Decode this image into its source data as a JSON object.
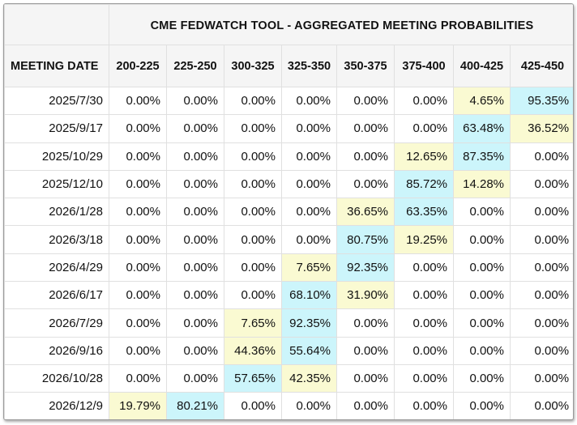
{
  "chart_data": {
    "type": "table",
    "title": "CME FEDWATCH TOOL - AGGREGATED MEETING PROBABILITIES",
    "row_header_label": "MEETING DATE",
    "columns": [
      "200-225",
      "225-250",
      "300-325",
      "325-350",
      "350-375",
      "375-400",
      "400-425",
      "425-450"
    ],
    "rows": [
      {
        "date": "2025/7/30",
        "values": [
          "0.00%",
          "0.00%",
          "0.00%",
          "0.00%",
          "0.00%",
          "0.00%",
          "4.65%",
          "95.35%"
        ],
        "highlights": [
          "",
          "",
          "",
          "",
          "",
          "",
          "y",
          "c"
        ]
      },
      {
        "date": "2025/9/17",
        "values": [
          "0.00%",
          "0.00%",
          "0.00%",
          "0.00%",
          "0.00%",
          "0.00%",
          "63.48%",
          "36.52%"
        ],
        "highlights": [
          "",
          "",
          "",
          "",
          "",
          "",
          "c",
          "y"
        ]
      },
      {
        "date": "2025/10/29",
        "values": [
          "0.00%",
          "0.00%",
          "0.00%",
          "0.00%",
          "0.00%",
          "12.65%",
          "87.35%",
          "0.00%"
        ],
        "highlights": [
          "",
          "",
          "",
          "",
          "",
          "y",
          "c",
          ""
        ]
      },
      {
        "date": "2025/12/10",
        "values": [
          "0.00%",
          "0.00%",
          "0.00%",
          "0.00%",
          "0.00%",
          "85.72%",
          "14.28%",
          "0.00%"
        ],
        "highlights": [
          "",
          "",
          "",
          "",
          "",
          "c",
          "y",
          ""
        ]
      },
      {
        "date": "2026/1/28",
        "values": [
          "0.00%",
          "0.00%",
          "0.00%",
          "0.00%",
          "36.65%",
          "63.35%",
          "0.00%",
          "0.00%"
        ],
        "highlights": [
          "",
          "",
          "",
          "",
          "y",
          "c",
          "",
          ""
        ]
      },
      {
        "date": "2026/3/18",
        "values": [
          "0.00%",
          "0.00%",
          "0.00%",
          "0.00%",
          "80.75%",
          "19.25%",
          "0.00%",
          "0.00%"
        ],
        "highlights": [
          "",
          "",
          "",
          "",
          "c",
          "y",
          "",
          ""
        ]
      },
      {
        "date": "2026/4/29",
        "values": [
          "0.00%",
          "0.00%",
          "0.00%",
          "7.65%",
          "92.35%",
          "0.00%",
          "0.00%",
          "0.00%"
        ],
        "highlights": [
          "",
          "",
          "",
          "y",
          "c",
          "",
          "",
          ""
        ]
      },
      {
        "date": "2026/6/17",
        "values": [
          "0.00%",
          "0.00%",
          "0.00%",
          "68.10%",
          "31.90%",
          "0.00%",
          "0.00%",
          "0.00%"
        ],
        "highlights": [
          "",
          "",
          "",
          "c",
          "y",
          "",
          "",
          ""
        ]
      },
      {
        "date": "2026/7/29",
        "values": [
          "0.00%",
          "0.00%",
          "7.65%",
          "92.35%",
          "0.00%",
          "0.00%",
          "0.00%",
          "0.00%"
        ],
        "highlights": [
          "",
          "",
          "y",
          "c",
          "",
          "",
          "",
          ""
        ]
      },
      {
        "date": "2026/9/16",
        "values": [
          "0.00%",
          "0.00%",
          "44.36%",
          "55.64%",
          "0.00%",
          "0.00%",
          "0.00%",
          "0.00%"
        ],
        "highlights": [
          "",
          "",
          "y",
          "c",
          "",
          "",
          "",
          ""
        ]
      },
      {
        "date": "2026/10/28",
        "values": [
          "0.00%",
          "0.00%",
          "57.65%",
          "42.35%",
          "0.00%",
          "0.00%",
          "0.00%",
          "0.00%"
        ],
        "highlights": [
          "",
          "",
          "c",
          "y",
          "",
          "",
          "",
          ""
        ]
      },
      {
        "date": "2026/12/9",
        "values": [
          "19.79%",
          "80.21%",
          "0.00%",
          "0.00%",
          "0.00%",
          "0.00%",
          "0.00%",
          "0.00%"
        ],
        "highlights": [
          "y",
          "c",
          "",
          "",
          "",
          "",
          "",
          ""
        ]
      }
    ],
    "highlight_colors": {
      "y": "#fafad2",
      "c": "#ccf5fb"
    },
    "header_background": "#f5f5f5",
    "grid_color": "#e0e0e0"
  }
}
